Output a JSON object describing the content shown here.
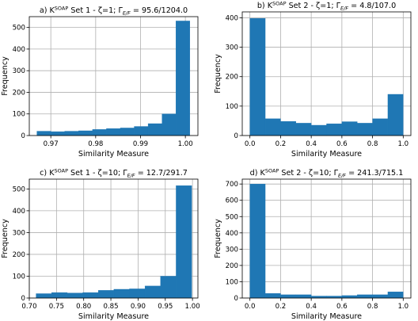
{
  "colors": {
    "bar": "#1f77b4",
    "grid": "#b0b0b0"
  },
  "chart_data": [
    {
      "type": "bar",
      "title": {
        "prefix": "a) K",
        "sup": "SOAP",
        "rest": " Set 1 - ζ=1; Γ",
        "sub": "E/F",
        "tail": " = 95.6/1204.0"
      },
      "xlabel": "Similarity Measure",
      "ylabel": "Frequency",
      "xlim": [
        0.9652,
        1.0028
      ],
      "ylim": [
        0,
        550
      ],
      "xticks": [
        0.97,
        0.98,
        0.99,
        1.0
      ],
      "xtick_labels": [
        "0.97",
        "0.98",
        "0.99",
        "1.00"
      ],
      "yticks": [
        0,
        100,
        200,
        300,
        400,
        500
      ],
      "bin_edges": [
        0.9669,
        0.97,
        0.9731,
        0.9762,
        0.9793,
        0.9824,
        0.9855,
        0.9886,
        0.9917,
        0.9948,
        0.9979,
        1.001
      ],
      "values": [
        20,
        18,
        20,
        22,
        28,
        32,
        35,
        42,
        55,
        100,
        530
      ]
    },
    {
      "type": "bar",
      "title": {
        "prefix": "b) K",
        "sup": "SOAP",
        "rest": " Set 2 - ζ=1; Γ",
        "sub": "E/F",
        "tail": " = 4.8/107.0"
      },
      "xlabel": "Similarity Measure",
      "ylabel": "Frequency",
      "xlim": [
        -0.05,
        1.05
      ],
      "ylim": [
        0,
        420
      ],
      "xticks": [
        0.0,
        0.2,
        0.4,
        0.6,
        0.8,
        1.0
      ],
      "xtick_labels": [
        "0.0",
        "0.2",
        "0.4",
        "0.6",
        "0.8",
        "1.0"
      ],
      "yticks": [
        0,
        100,
        200,
        300,
        400
      ],
      "bin_edges": [
        0.0,
        0.1,
        0.2,
        0.3,
        0.4,
        0.5,
        0.6,
        0.7,
        0.8,
        0.9,
        1.0
      ],
      "values": [
        398,
        57,
        48,
        42,
        35,
        40,
        47,
        42,
        57,
        140
      ]
    },
    {
      "type": "bar",
      "title": {
        "prefix": "c) K",
        "sup": "SOAP",
        "rest": " Set 1 - ζ=10; Γ",
        "sub": "E/F",
        "tail": " = 12.7/291.7"
      },
      "xlabel": "Similarity Measure",
      "ylabel": "Frequency",
      "xlim": [
        0.7,
        1.01
      ],
      "ylim": [
        0,
        545
      ],
      "xticks": [
        0.7,
        0.75,
        0.8,
        0.85,
        0.9,
        0.95,
        1.0
      ],
      "xtick_labels": [
        "0.70",
        "0.75",
        "0.80",
        "0.85",
        "0.90",
        "0.95",
        "1.00"
      ],
      "yticks": [
        0,
        100,
        200,
        300,
        400,
        500
      ],
      "bin_edges": [
        0.7125,
        0.7411,
        0.7697,
        0.7983,
        0.8269,
        0.8555,
        0.8841,
        0.9127,
        0.9413,
        0.9699,
        0.9985
      ],
      "values": [
        20,
        25,
        23,
        25,
        35,
        40,
        42,
        55,
        100,
        515
      ]
    },
    {
      "type": "bar",
      "title": {
        "prefix": "d) K",
        "sup": "SOAP",
        "rest": " Set 2 - ζ=10; Γ",
        "sub": "E/F",
        "tail": " = 241.3/715.1"
      },
      "xlabel": "Similarity Measure",
      "ylabel": "Frequency",
      "xlim": [
        -0.05,
        1.05
      ],
      "ylim": [
        0,
        730
      ],
      "xticks": [
        0.0,
        0.2,
        0.4,
        0.6,
        0.8,
        1.0
      ],
      "xtick_labels": [
        "0.0",
        "0.2",
        "0.4",
        "0.6",
        "0.8",
        "1.0"
      ],
      "yticks": [
        0,
        100,
        200,
        300,
        400,
        500,
        600,
        700
      ],
      "bin_edges": [
        0.0,
        0.1,
        0.2,
        0.3,
        0.4,
        0.5,
        0.6,
        0.7,
        0.8,
        0.9,
        1.0
      ],
      "values": [
        700,
        28,
        20,
        20,
        12,
        12,
        15,
        20,
        20,
        38
      ]
    }
  ]
}
